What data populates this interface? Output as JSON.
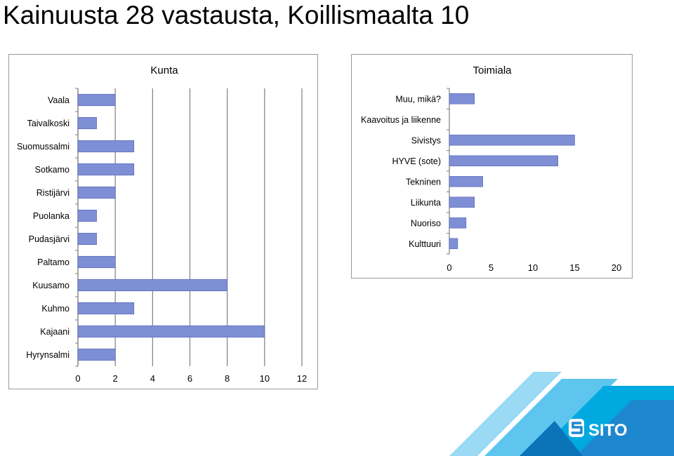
{
  "page": {
    "title": "Kainuusta 28 vastausta, Koillismaalta 10"
  },
  "logo": {
    "text": "SITO",
    "colors": [
      "#00a9e0",
      "#1e88cf",
      "#5ec6ee",
      "#9adaf5",
      "#0b73b8"
    ]
  },
  "chart_data": [
    {
      "type": "bar",
      "orientation": "horizontal",
      "title": "Kunta",
      "categories": [
        "Vaala",
        "Taivalkoski",
        "Suomussalmi",
        "Sotkamo",
        "Ristijärvi",
        "Puolanka",
        "Pudasjärvi",
        "Paltamo",
        "Kuusamo",
        "Kuhmo",
        "Kajaani",
        "Hyrynsalmi"
      ],
      "values": [
        2,
        1,
        3,
        3,
        2,
        1,
        1,
        2,
        8,
        3,
        10,
        2
      ],
      "xlim": [
        0,
        12
      ],
      "xticks": [
        0,
        2,
        4,
        6,
        8,
        10,
        12
      ],
      "grid": true,
      "bar_color": "#7f8fd6",
      "bar_edge_color": "#5060b0"
    },
    {
      "type": "bar",
      "orientation": "horizontal",
      "title": "Toimiala",
      "categories": [
        "Muu, mikä?",
        "Kaavoitus ja liikenne",
        "Sivistys",
        "HYVE (sote)",
        "Tekninen",
        "Liikunta",
        "Nuoriso",
        "Kulttuuri"
      ],
      "values": [
        3,
        0,
        15,
        13,
        4,
        3,
        2,
        1
      ],
      "xlim": [
        0,
        20
      ],
      "xticks": [
        0,
        5,
        10,
        15,
        20
      ],
      "grid": false,
      "bar_color": "#7f8fd6",
      "bar_edge_color": "#5060b0"
    }
  ]
}
